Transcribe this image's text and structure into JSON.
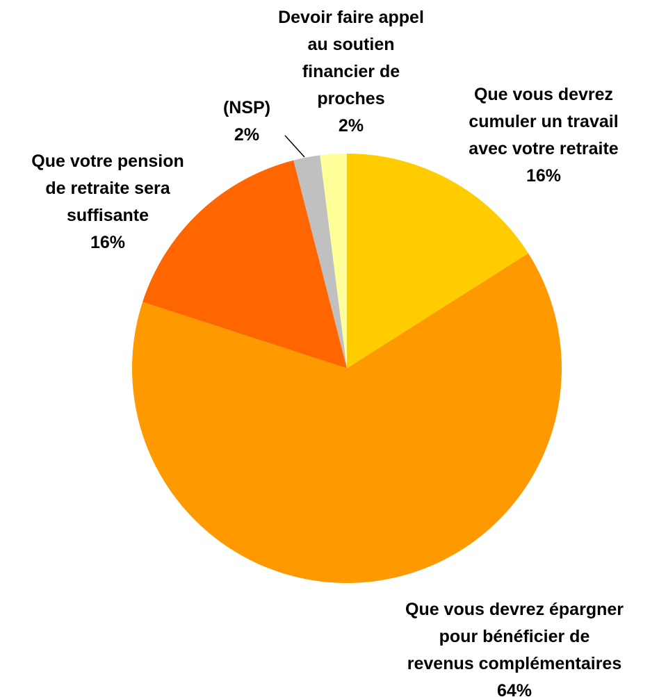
{
  "chart_data": {
    "type": "pie",
    "categories": [
      "Que vous devrez\ncumuler un travail\navec votre retraite",
      "Que vous devrez épargner\npour bénéficier de\nrevenus complémentaires",
      "Que votre pension\nde retraite sera\nsuffisante",
      "(NSP)",
      "Devoir faire appel\nau soutien\nfinancier de\nproches"
    ],
    "values": [
      16,
      64,
      16,
      2,
      2
    ],
    "value_labels": [
      "16%",
      "64%",
      "16%",
      "2%",
      "2%"
    ],
    "colors": [
      "#FFCC00",
      "#FF9900",
      "#FF6600",
      "#C0C0C0",
      "#FFFF99"
    ]
  }
}
